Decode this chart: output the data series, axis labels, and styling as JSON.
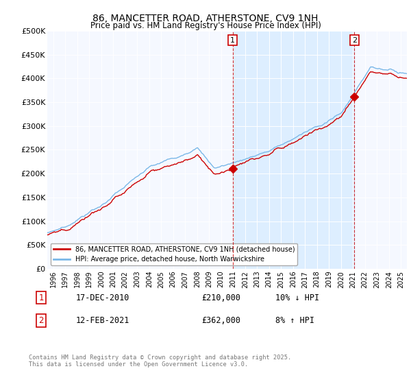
{
  "title": "86, MANCETTER ROAD, ATHERSTONE, CV9 1NH",
  "subtitle": "Price paid vs. HM Land Registry's House Price Index (HPI)",
  "ylabel_ticks": [
    "£0",
    "£50K",
    "£100K",
    "£150K",
    "£200K",
    "£250K",
    "£300K",
    "£350K",
    "£400K",
    "£450K",
    "£500K"
  ],
  "ylim": [
    0,
    500000
  ],
  "xlim_start": 1995.5,
  "xlim_end": 2025.5,
  "hpi_color": "#7ab8e8",
  "price_color": "#cc0000",
  "shade_color": "#ddeeff",
  "marker1_x": 2010.96,
  "marker1_y": 210000,
  "marker2_x": 2021.12,
  "marker2_y": 362000,
  "legend_entry1": "86, MANCETTER ROAD, ATHERSTONE, CV9 1NH (detached house)",
  "legend_entry2": "HPI: Average price, detached house, North Warwickshire",
  "annotation1_label": "1",
  "annotation1_date": "17-DEC-2010",
  "annotation1_price": "£210,000",
  "annotation1_change": "10% ↓ HPI",
  "annotation2_label": "2",
  "annotation2_date": "12-FEB-2021",
  "annotation2_price": "£362,000",
  "annotation2_change": "8% ↑ HPI",
  "footer": "Contains HM Land Registry data © Crown copyright and database right 2025.\nThis data is licensed under the Open Government Licence v3.0.",
  "background_color": "#ffffff",
  "plot_bg_color": "#f5f8ff"
}
